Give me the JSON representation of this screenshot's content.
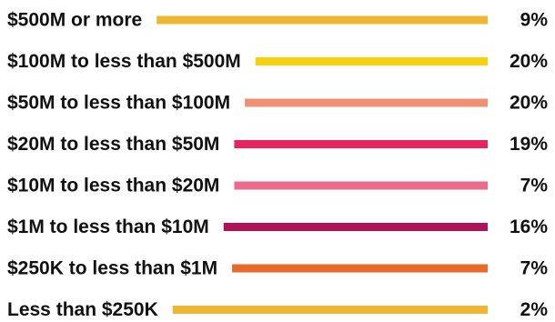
{
  "chart_data": {
    "type": "bar",
    "title": "",
    "xlabel": "",
    "ylabel": "",
    "categories": [
      "$500M or more",
      "$100M to less than $500M",
      "$50M to less than $100M",
      "$20M to less than $50M",
      "$10M to less than $20M",
      "$1M to less than $10M",
      "$250K to less than $1M",
      "Less than $250K"
    ],
    "values": [
      9,
      20,
      20,
      19,
      7,
      16,
      7,
      2
    ],
    "value_labels": [
      "9%",
      "20%",
      "20%",
      "19%",
      "7%",
      "16%",
      "7%",
      "2%"
    ],
    "colors": [
      "#efb631",
      "#f7d10e",
      "#ef9070",
      "#e8245f",
      "#ec6a8c",
      "#ae1259",
      "#e8692a",
      "#efb631"
    ],
    "grid": false,
    "legend": "none"
  }
}
